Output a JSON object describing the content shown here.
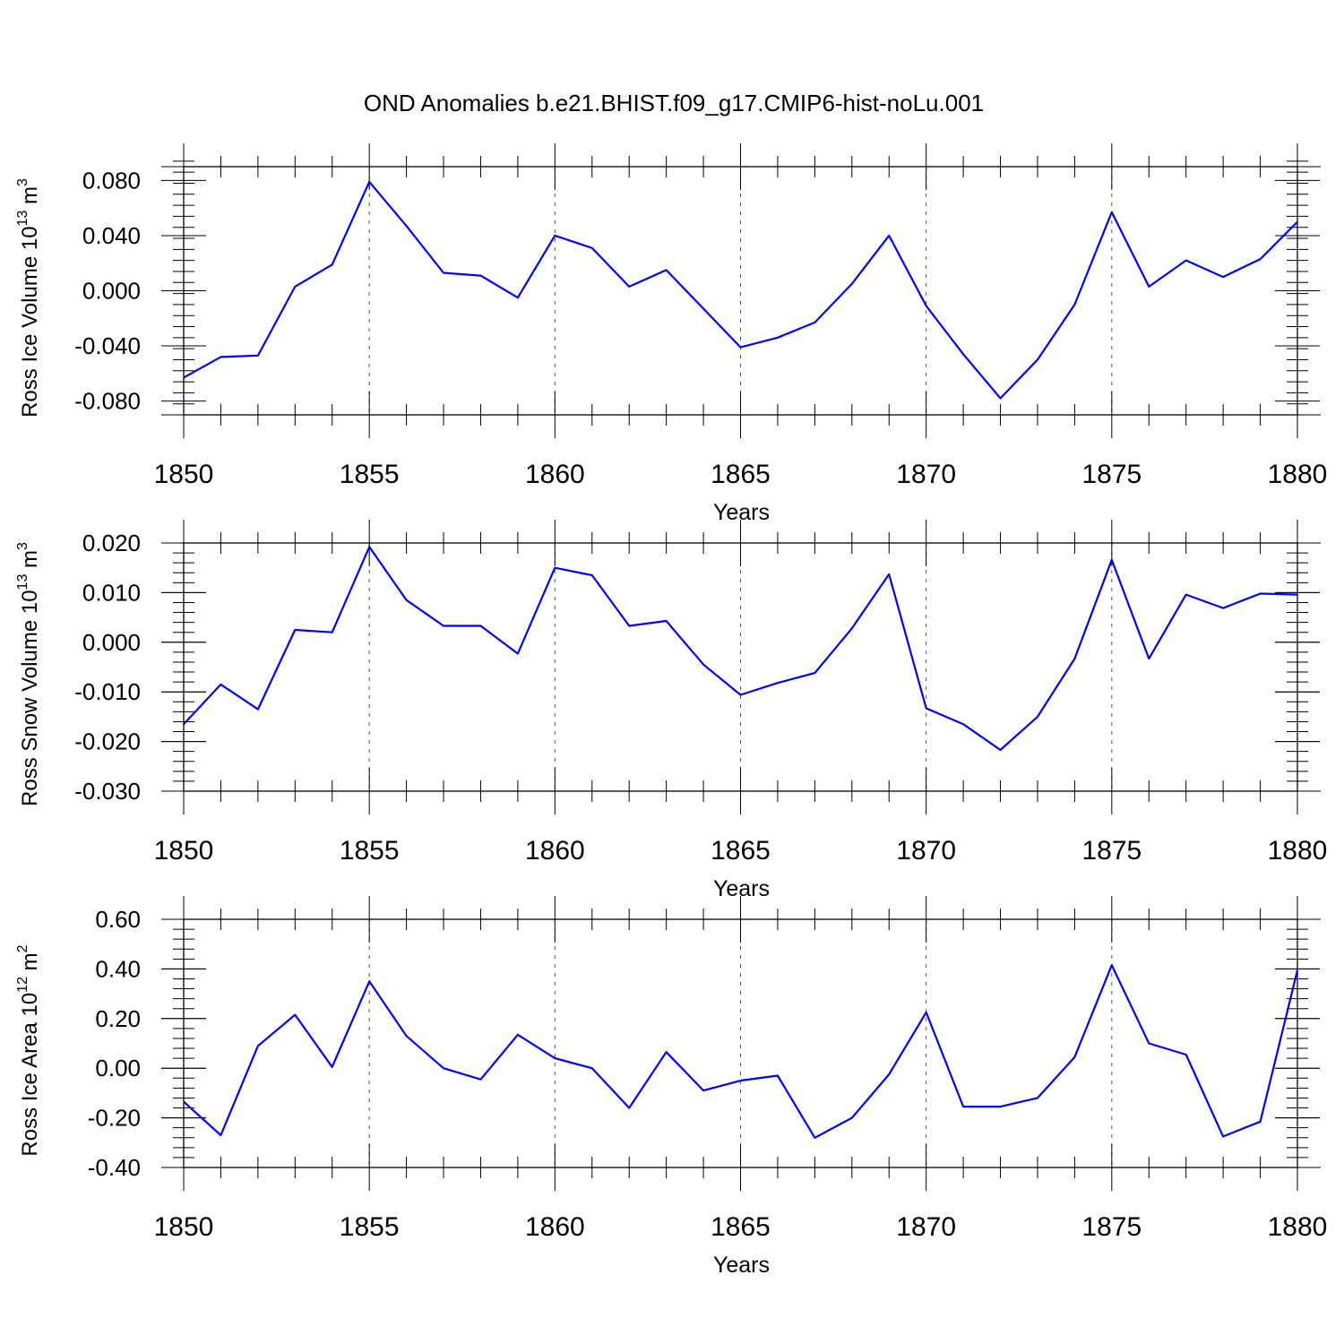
{
  "title": "OND Anomalies b.e21.BHIST.f09_g17.CMIP6-hist-noLu.001",
  "colors": {
    "line": "#0000ff",
    "axis": "#000000",
    "grid": "#555555"
  },
  "chart_data": [
    {
      "type": "line",
      "ylabel_main": "Ross Ice Volume 10",
      "ylabel_exp": "13",
      "ylabel_unit": " m",
      "ylabel_unit_exp": "3",
      "xlabel": "Years",
      "xlim": [
        1850,
        1880
      ],
      "ylim": [
        -0.09,
        0.09
      ],
      "y_ticks": [
        -0.08,
        -0.04,
        0.0,
        0.04,
        0.08
      ],
      "y_tick_labels": [
        "-0.080",
        "-0.040",
        "0.000",
        "0.040",
        "0.080"
      ],
      "y_minor_step": 0.008,
      "x_ticks": [
        1850,
        1855,
        1860,
        1865,
        1870,
        1875,
        1880
      ],
      "x_tick_labels": [
        "1850",
        "1855",
        "1860",
        "1865",
        "1870",
        "1875",
        "1880"
      ],
      "grid_x": [
        1855,
        1860,
        1865,
        1870,
        1875
      ],
      "series": [
        {
          "name": "Ross Ice Volume",
          "x": [
            1850,
            1851,
            1852,
            1853,
            1854,
            1855,
            1856,
            1857,
            1858,
            1859,
            1860,
            1861,
            1862,
            1863,
            1864,
            1865,
            1866,
            1867,
            1868,
            1869,
            1870,
            1871,
            1872,
            1873,
            1874,
            1875,
            1876,
            1877,
            1878,
            1879,
            1880
          ],
          "values": [
            -0.063,
            -0.048,
            -0.047,
            0.003,
            0.019,
            0.079,
            0.047,
            0.013,
            0.011,
            -0.005,
            0.04,
            0.031,
            0.003,
            0.015,
            -0.013,
            -0.041,
            -0.034,
            -0.023,
            0.005,
            0.04,
            -0.011,
            -0.046,
            -0.078,
            -0.05,
            -0.01,
            0.057,
            0.003,
            0.022,
            0.01,
            0.023,
            0.05
          ]
        }
      ]
    },
    {
      "type": "line",
      "ylabel_main": "Ross Snow Volume 10",
      "ylabel_exp": "13",
      "ylabel_unit": " m",
      "ylabel_unit_exp": "3",
      "xlabel": "Years",
      "xlim": [
        1850,
        1880
      ],
      "ylim": [
        -0.03,
        0.02
      ],
      "y_ticks": [
        -0.03,
        -0.02,
        -0.01,
        0.0,
        0.01,
        0.02
      ],
      "y_tick_labels": [
        "-0.030",
        "-0.020",
        "-0.010",
        "0.000",
        "0.010",
        "0.020"
      ],
      "y_minor_step": 0.002,
      "x_ticks": [
        1850,
        1855,
        1860,
        1865,
        1870,
        1875,
        1880
      ],
      "x_tick_labels": [
        "1850",
        "1855",
        "1860",
        "1865",
        "1870",
        "1875",
        "1880"
      ],
      "grid_x": [
        1855,
        1860,
        1865,
        1870,
        1875
      ],
      "series": [
        {
          "name": "Ross Snow Volume",
          "x": [
            1850,
            1851,
            1852,
            1853,
            1854,
            1855,
            1856,
            1857,
            1858,
            1859,
            1860,
            1861,
            1862,
            1863,
            1864,
            1865,
            1866,
            1867,
            1868,
            1869,
            1870,
            1871,
            1872,
            1873,
            1874,
            1875,
            1876,
            1877,
            1878,
            1879,
            1880
          ],
          "values": [
            -0.0165,
            -0.0085,
            -0.0135,
            0.0025,
            0.002,
            0.0192,
            0.0085,
            0.0033,
            0.0033,
            -0.0023,
            0.015,
            0.0135,
            0.0033,
            0.0043,
            -0.0045,
            -0.0106,
            -0.0082,
            -0.0062,
            0.0028,
            0.0137,
            -0.0133,
            -0.0165,
            -0.0217,
            -0.015,
            -0.0033,
            0.0166,
            -0.0033,
            0.0096,
            0.0069,
            0.0098,
            0.0096
          ]
        }
      ]
    },
    {
      "type": "line",
      "ylabel_main": "Ross Ice Area 10",
      "ylabel_exp": "12",
      "ylabel_unit": " m",
      "ylabel_unit_exp": "2",
      "xlabel": "Years",
      "xlim": [
        1850,
        1880
      ],
      "ylim": [
        -0.4,
        0.6
      ],
      "y_ticks": [
        -0.4,
        -0.2,
        0.0,
        0.2,
        0.4,
        0.6
      ],
      "y_tick_labels": [
        "-0.40",
        "-0.20",
        "0.00",
        "0.20",
        "0.40",
        "0.60"
      ],
      "y_minor_step": 0.04,
      "x_ticks": [
        1850,
        1855,
        1860,
        1865,
        1870,
        1875,
        1880
      ],
      "x_tick_labels": [
        "1850",
        "1855",
        "1860",
        "1865",
        "1870",
        "1875",
        "1880"
      ],
      "grid_x": [
        1855,
        1860,
        1865,
        1870,
        1875
      ],
      "series": [
        {
          "name": "Ross Ice Area",
          "x": [
            1850,
            1851,
            1852,
            1853,
            1854,
            1855,
            1856,
            1857,
            1858,
            1859,
            1860,
            1861,
            1862,
            1863,
            1864,
            1865,
            1866,
            1867,
            1868,
            1869,
            1870,
            1871,
            1872,
            1873,
            1874,
            1875,
            1876,
            1877,
            1878,
            1879,
            1880
          ],
          "values": [
            -0.135,
            -0.27,
            0.09,
            0.215,
            0.005,
            0.35,
            0.13,
            0.0,
            -0.045,
            0.135,
            0.04,
            0.0,
            -0.16,
            0.065,
            -0.09,
            -0.05,
            -0.03,
            -0.28,
            -0.2,
            -0.025,
            0.225,
            -0.155,
            -0.155,
            -0.12,
            0.045,
            0.415,
            0.1,
            0.055,
            -0.275,
            -0.215,
            0.395
          ]
        }
      ]
    }
  ]
}
